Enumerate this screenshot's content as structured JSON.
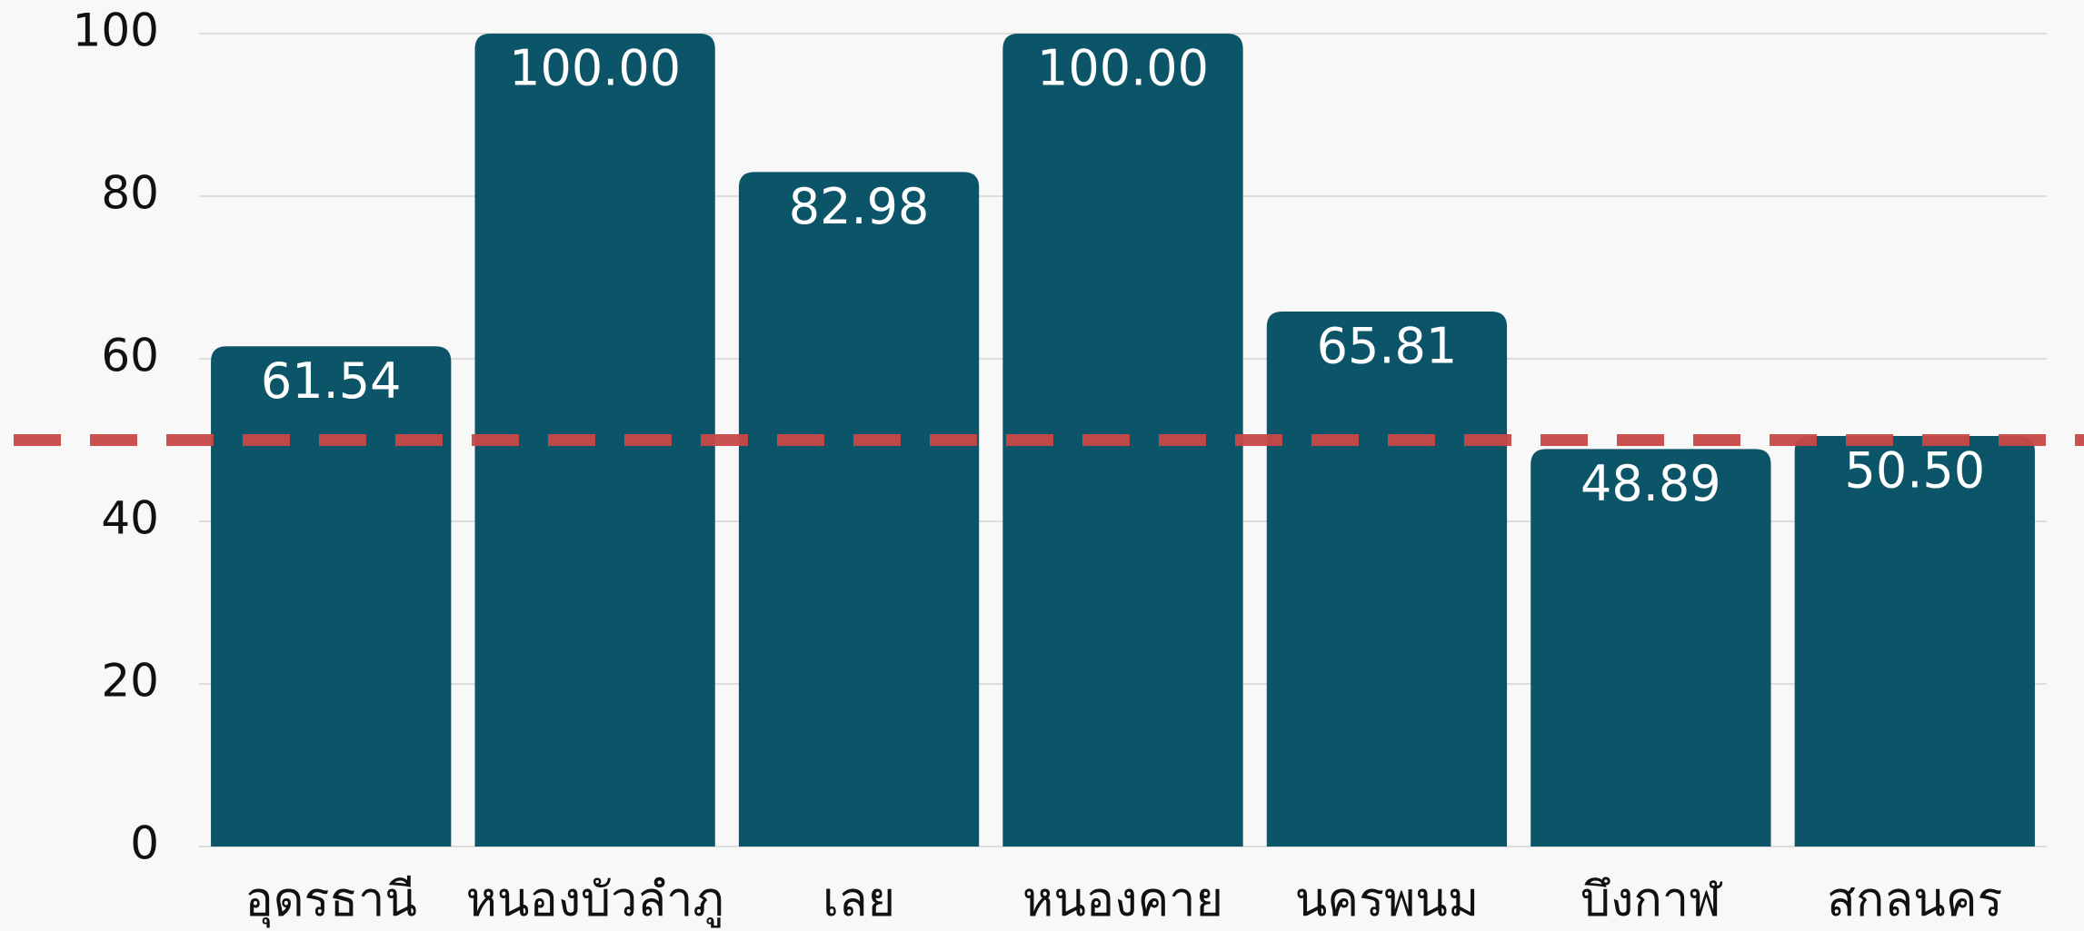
{
  "chart_data": {
    "type": "bar",
    "categories": [
      "อุดรธานี",
      "หนองบัวลำภู",
      "เลย",
      "หนองคาย",
      "นครพนม",
      "บึงกาฬ",
      "สกลนคร"
    ],
    "values": [
      61.54,
      100,
      82.98,
      100,
      65.81,
      48.89,
      50.5
    ],
    "value_labels": [
      "61.54",
      "100.00",
      "82.98",
      "100.00",
      "65.81",
      "48.89",
      "50.50"
    ],
    "color": "#0c5569",
    "ylim": [
      0,
      100
    ],
    "yticks": [
      0,
      20,
      40,
      60,
      80,
      100
    ],
    "grid": true,
    "reference_line": {
      "value": 50,
      "color": "#c94848"
    }
  }
}
